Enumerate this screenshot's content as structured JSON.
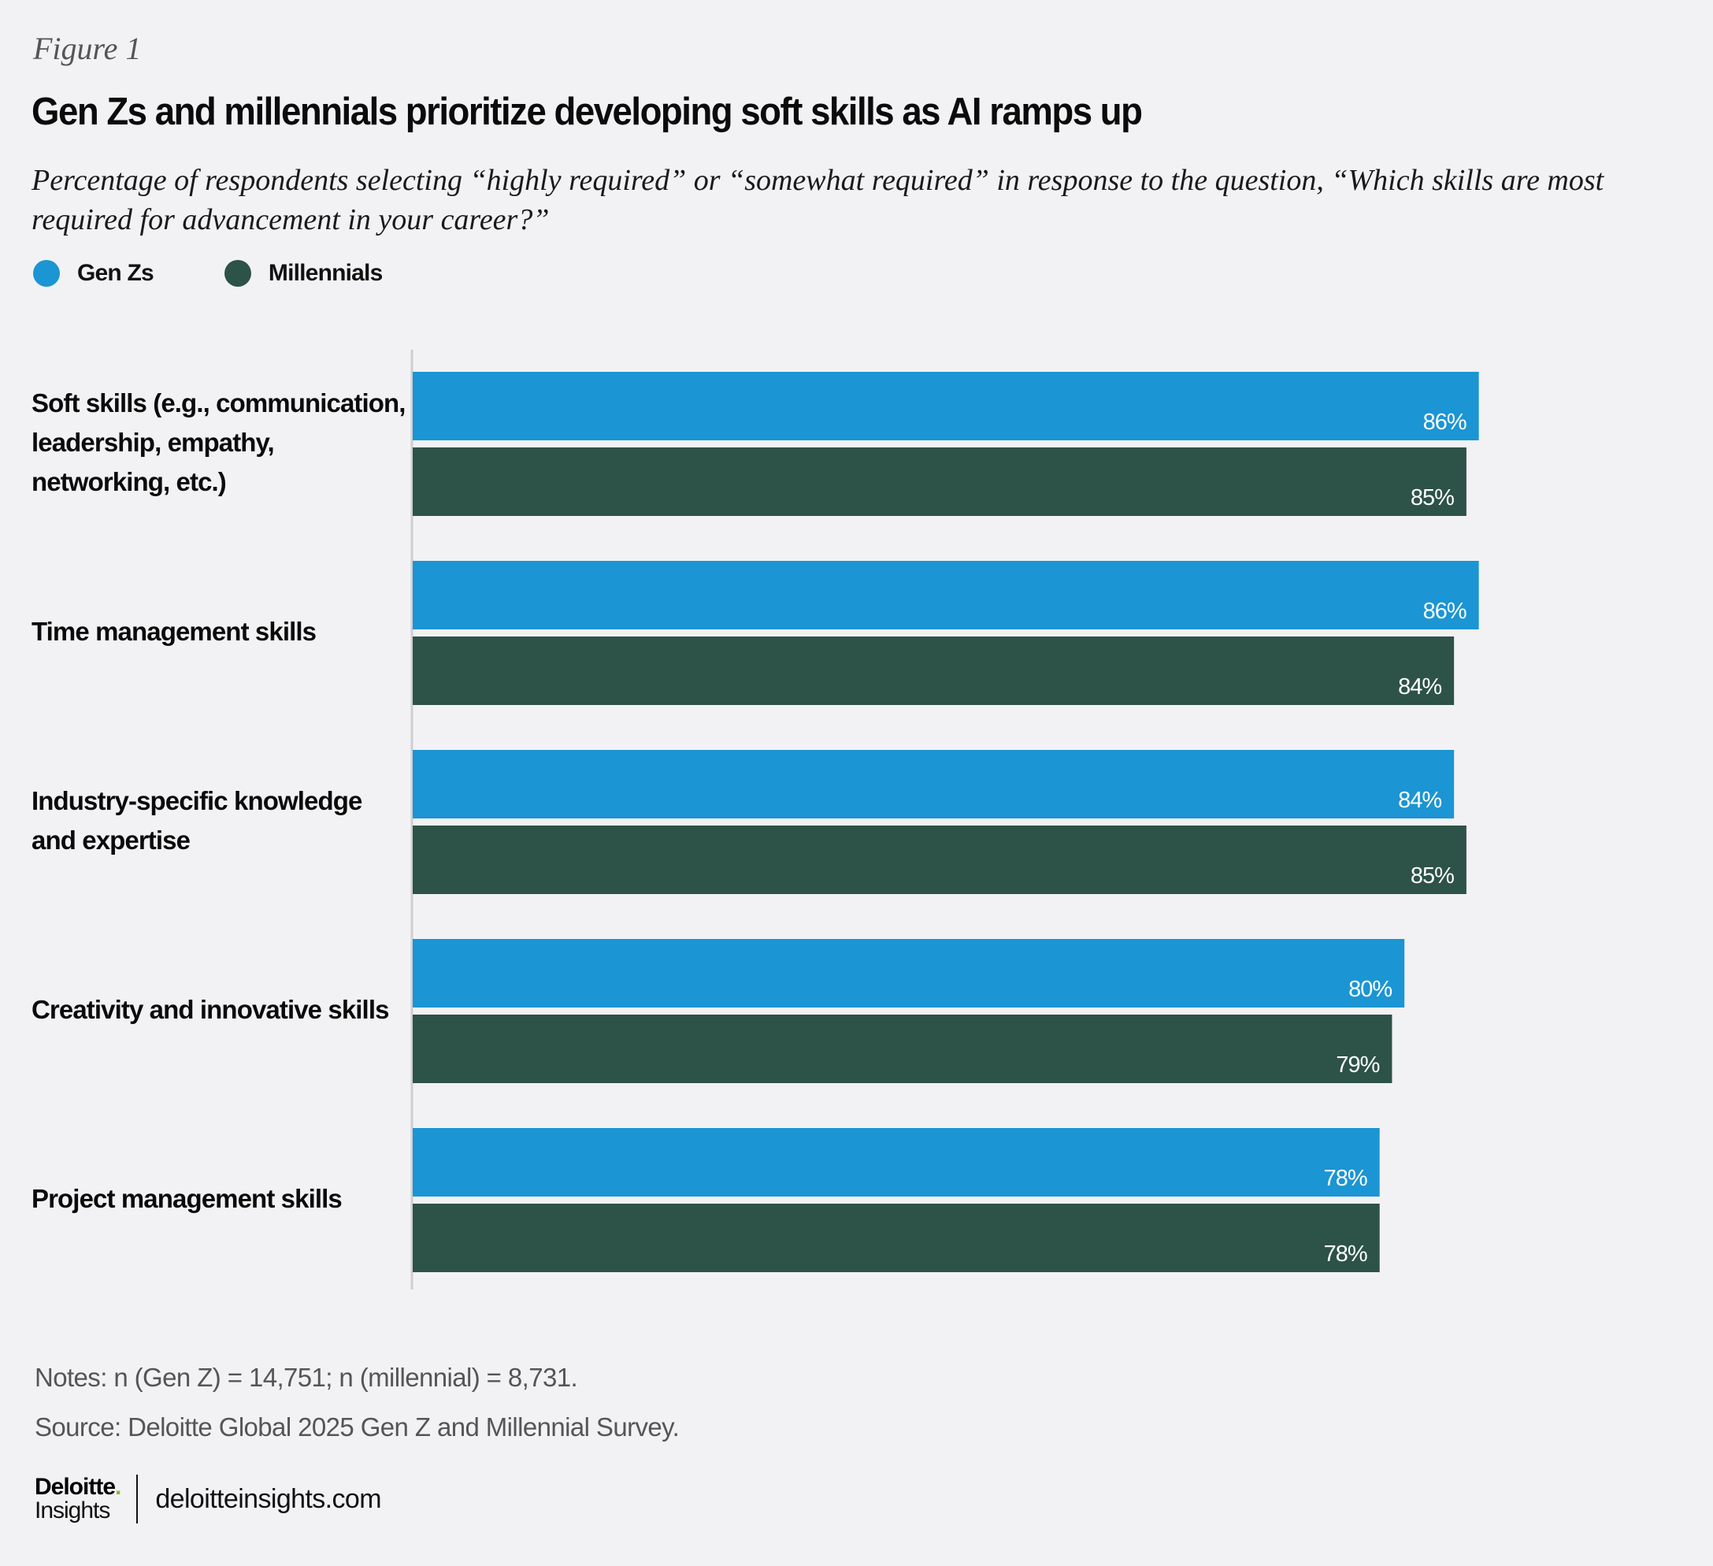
{
  "figure_label": "Figure 1",
  "title": "Gen Zs and millennials prioritize developing soft skills as AI ramps up",
  "subtitle": "Percentage of respondents selecting “highly required” or “somewhat required” in response to the question, “Which skills are most required for advancement in your career?”",
  "legend": [
    {
      "label": "Gen Zs",
      "color": "#1b95d3"
    },
    {
      "label": "Millennials",
      "color": "#2d5248"
    }
  ],
  "chart_data": {
    "type": "bar",
    "orientation": "horizontal",
    "title": "Gen Zs and millennials prioritize developing soft skills as AI ramps up",
    "xlabel": "",
    "ylabel": "",
    "xlim": [
      0,
      100
    ],
    "grid": false,
    "legend_position": "top-left",
    "value_format": "{v}%",
    "categories": [
      "Soft skills (e.g., communication, leadership, empathy, networking, etc.)",
      "Time management skills",
      "Industry-specific knowledge and expertise",
      "Creativity and innovative skills",
      "Project management skills"
    ],
    "category_lines": [
      [
        "Soft skills (e.g., communication,",
        "leadership, empathy,",
        "networking, etc.)"
      ],
      [
        "Time management skills"
      ],
      [
        "Industry-specific knowledge",
        "and expertise"
      ],
      [
        "Creativity and innovative skills"
      ],
      [
        "Project management skills"
      ]
    ],
    "series": [
      {
        "name": "Gen Zs",
        "color": "#1b95d3",
        "values": [
          86,
          86,
          84,
          80,
          78
        ]
      },
      {
        "name": "Millennials",
        "color": "#2d5248",
        "values": [
          85,
          84,
          85,
          79,
          78
        ]
      }
    ]
  },
  "notes": "Notes: n (Gen Z) = 14,751; n (millennial) = 8,731.",
  "source": "Source: Deloitte Global 2025 Gen Z and Millennial Survey.",
  "brand": {
    "name": "Deloitte",
    "dot": ".",
    "sub": "Insights",
    "url": "deloitteinsights.com"
  }
}
